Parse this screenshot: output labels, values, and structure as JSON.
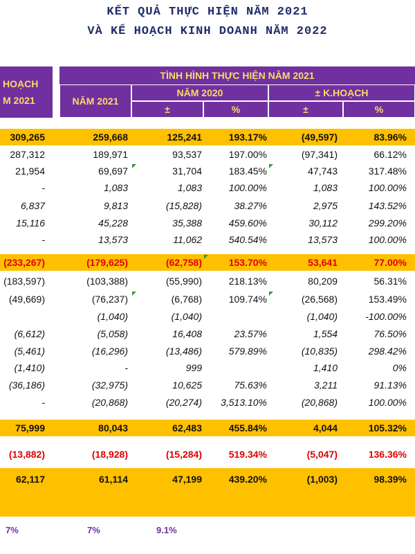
{
  "title": {
    "line1": "KẾT QUẢ THỰC HIỆN NĂM 2021",
    "line2": "VÀ KẾ HOẠCH KINH DOANH NĂM 2022"
  },
  "header": {
    "kh_line1": "HOẠCH",
    "kh_line2": "M 2021",
    "group": "TÌNH HÌNH THỰC HIỆN NĂM 2021",
    "nam2021": "NĂM 2021",
    "nam2020": "NĂM 2020",
    "kh": "± K.HOẠCH",
    "pm": "±",
    "pct": "%"
  },
  "rows": [
    {
      "v": [
        "309,265",
        "259,668",
        "125,241",
        "193.17%",
        "(49,597)",
        "83.96%"
      ]
    },
    {
      "v": [
        "287,312",
        "189,971",
        "93,537",
        "197.00%",
        "(97,341)",
        "66.12%"
      ]
    },
    {
      "v": [
        "21,954",
        "69,697",
        "31,704",
        "183.45%",
        "47,743",
        "317.48%"
      ]
    },
    {
      "v": [
        "-",
        "1,083",
        "1,083",
        "100.00%",
        "1,083",
        "100.00%"
      ]
    },
    {
      "v": [
        "6,837",
        "9,813",
        "(15,828)",
        "38.27%",
        "2,975",
        "143.52%"
      ]
    },
    {
      "v": [
        "15,116",
        "45,228",
        "35,388",
        "459.60%",
        "30,112",
        "299.20%"
      ]
    },
    {
      "v": [
        "-",
        "13,573",
        "11,062",
        "540.54%",
        "13,573",
        "100.00%"
      ]
    },
    {
      "v": [
        "(233,267)",
        "(179,625)",
        "(62,758)",
        "153.70%",
        "53,641",
        "77.00%"
      ]
    },
    {
      "v": [
        "(183,597)",
        "(103,388)",
        "(55,990)",
        "218.13%",
        "80,209",
        "56.31%"
      ]
    },
    {
      "v": [
        "(49,669)",
        "(76,237)",
        "(6,768)",
        "109.74%",
        "(26,568)",
        "153.49%"
      ]
    },
    {
      "v": [
        "",
        "(1,040)",
        "(1,040)",
        "",
        "(1,040)",
        "-100.00%"
      ]
    },
    {
      "v": [
        "(6,612)",
        "(5,058)",
        "16,408",
        "23.57%",
        "1,554",
        "76.50%"
      ]
    },
    {
      "v": [
        "(5,461)",
        "(16,296)",
        "(13,486)",
        "579.89%",
        "(10,835)",
        "298.42%"
      ]
    },
    {
      "v": [
        "(1,410)",
        "-",
        "999",
        "",
        "1,410",
        "0%"
      ]
    },
    {
      "v": [
        "(36,186)",
        "(32,975)",
        "10,625",
        "75.63%",
        "3,211",
        "91.13%"
      ]
    },
    {
      "v": [
        "-",
        "(20,868)",
        "(20,274)",
        "3,513.10%",
        "(20,868)",
        "100.00%"
      ]
    },
    {
      "v": [
        "75,999",
        "80,043",
        "62,483",
        "455.84%",
        "4,044",
        "105.32%"
      ]
    },
    {
      "v": [
        "(13,882)",
        "(18,928)",
        "(15,284)",
        "519.34%",
        "(5,047)",
        "136.36%"
      ]
    },
    {
      "v": [
        "62,117",
        "61,114",
        "47,199",
        "439.20%",
        "(1,003)",
        "98.39%"
      ]
    }
  ],
  "footer": {
    "a": "7%",
    "b": "7%",
    "c": "9.1%"
  },
  "colors": {
    "purple": "#7030a0",
    "gold": "#ffc000",
    "header_text": "#ffd966",
    "red": "#e00000",
    "navy": "#1f2d6b"
  }
}
